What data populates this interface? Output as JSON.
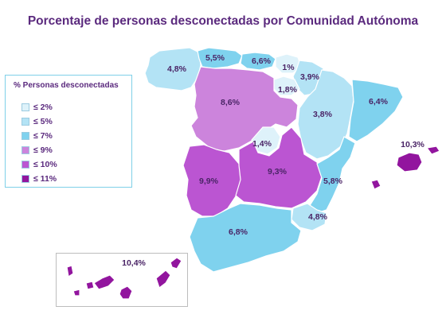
{
  "title": "Porcentaje de personas desconectadas por Comunidad Autónoma",
  "legend": {
    "title": "% Personas desconectadas",
    "items": [
      {
        "label": "≤ 2%",
        "color": "#def2fa"
      },
      {
        "label": "≤ 5%",
        "color": "#b3e3f5"
      },
      {
        "label": "≤ 7%",
        "color": "#7fd2ee"
      },
      {
        "label": "≤ 9%",
        "color": "#cc84dc"
      },
      {
        "label": "≤ 10%",
        "color": "#bb55d2"
      },
      {
        "label": "≤ 11%",
        "color": "#92159e"
      }
    ]
  },
  "regions": {
    "galicia": "4,8%",
    "asturias": "5,5%",
    "cantabria": "6,6%",
    "pais_vasco": "1%",
    "navarra": "3,9%",
    "la_rioja": "1,8%",
    "castilla_leon": "8,6%",
    "aragon": "3,8%",
    "cataluna": "6,4%",
    "madrid": "1,4%",
    "extremadura": "9,9%",
    "castilla_la_mancha": "9,3%",
    "valencia": "5,8%",
    "murcia": "4,8%",
    "andalucia": "6,8%",
    "baleares": "10,3%",
    "canarias": "10,4%"
  }
}
